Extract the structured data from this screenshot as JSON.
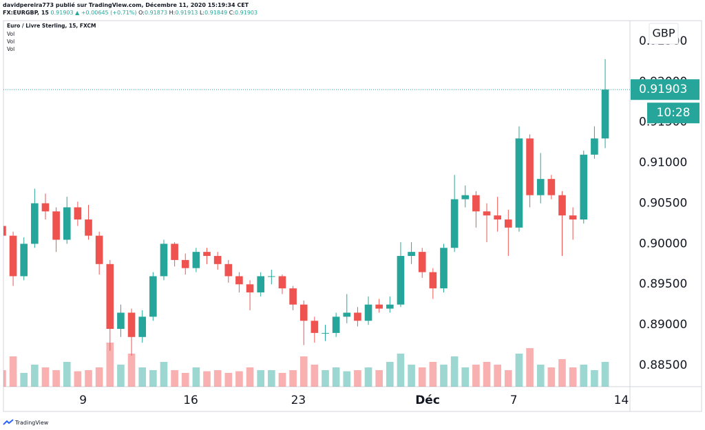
{
  "header": {
    "author_line": "davidpereira773 publié sur TradingView.com, Décembre 11, 2020 15:19:34 CET",
    "symbol": "FX:EURGBP, 15",
    "price": "0.91903",
    "change": "▲ +0.00645 (+0.71%)",
    "ohlc": [
      {
        "key": "O:",
        "value": "0.91873"
      },
      {
        "key": "H:",
        "value": "0.91913"
      },
      {
        "key": "L:",
        "value": "0.91849"
      },
      {
        "key": "C:",
        "value": "0.91903"
      }
    ]
  },
  "footer": "TradingView",
  "chart_data": {
    "type": "candlestick",
    "title": "Euro / Livre Sterling, 15, FXCM",
    "indicators": [
      "Vol",
      "Vol",
      "Vol"
    ],
    "currency": "GBP",
    "last_price": 0.91903,
    "countdown": "10:28",
    "up_color": "#26a69a",
    "down_color": "#ef5350",
    "grid": true,
    "x": [
      -3.75,
      -3.25,
      -2.75,
      -2.25,
      -1.75,
      -1.25,
      -0.75,
      -0.25,
      0.25,
      0.75,
      1.25,
      1.75,
      2.25,
      2.75,
      3.25,
      3.75,
      4.25,
      4.75,
      5.25,
      5.75,
      6.25,
      6.75,
      7.25,
      7.75,
      8.25,
      8.75,
      9.25,
      9.75,
      10.25,
      10.75,
      11.25,
      11.75,
      12.25,
      12.75,
      13.25,
      13.75,
      14.25,
      14.75,
      15.25,
      15.75,
      16.25,
      16.75,
      17.25,
      17.75,
      18.25,
      18.75,
      19.25,
      19.75,
      20.25,
      20.75,
      21.25,
      21.75,
      22.25,
      22.75,
      23.25,
      23.75,
      24.25
    ],
    "open": [
      0.9022,
      0.901,
      0.896,
      0.9,
      0.905,
      0.904,
      0.9005,
      0.9045,
      0.903,
      0.901,
      0.8975,
      0.8895,
      0.8915,
      0.8885,
      0.891,
      0.896,
      0.9,
      0.898,
      0.897,
      0.899,
      0.8985,
      0.8975,
      0.896,
      0.895,
      0.894,
      0.896,
      0.896,
      0.8945,
      0.8925,
      0.8905,
      0.889,
      0.889,
      0.891,
      0.8915,
      0.8905,
      0.8925,
      0.892,
      0.8925,
      0.8985,
      0.899,
      0.8965,
      0.8945,
      0.8995,
      0.9055,
      0.906,
      0.904,
      0.9035,
      0.903,
      0.902,
      0.913,
      0.906,
      0.908,
      0.906,
      0.9035,
      0.903,
      0.911,
      0.913
    ],
    "high": [
      0.903,
      0.9015,
      0.9008,
      0.9068,
      0.9062,
      0.9045,
      0.9058,
      0.9052,
      0.9048,
      0.9015,
      0.898,
      0.8925,
      0.892,
      0.8918,
      0.8965,
      0.9005,
      0.9002,
      0.8988,
      0.8995,
      0.8995,
      0.899,
      0.898,
      0.8965,
      0.8955,
      0.8965,
      0.8968,
      0.8962,
      0.8948,
      0.893,
      0.891,
      0.89,
      0.8915,
      0.8938,
      0.8922,
      0.8935,
      0.8932,
      0.8935,
      0.9002,
      0.9002,
      0.8995,
      0.897,
      0.9,
      0.9085,
      0.9072,
      0.9065,
      0.905,
      0.9058,
      0.9042,
      0.9145,
      0.9135,
      0.9112,
      0.9085,
      0.9065,
      0.9045,
      0.9115,
      0.9145,
      0.9228
    ],
    "low": [
      0.9005,
      0.8948,
      0.8955,
      0.8995,
      0.903,
      0.899,
      0.9,
      0.9022,
      0.9005,
      0.8962,
      0.8868,
      0.8885,
      0.8862,
      0.8878,
      0.8905,
      0.8955,
      0.8972,
      0.8962,
      0.8965,
      0.8975,
      0.8968,
      0.8952,
      0.894,
      0.8918,
      0.8935,
      0.895,
      0.8938,
      0.8918,
      0.8875,
      0.8878,
      0.888,
      0.8885,
      0.8902,
      0.8898,
      0.89,
      0.8915,
      0.8915,
      0.8922,
      0.8975,
      0.8958,
      0.8932,
      0.894,
      0.899,
      0.9045,
      0.902,
      0.9002,
      0.9015,
      0.8985,
      0.9015,
      0.9045,
      0.905,
      0.9055,
      0.8985,
      0.9005,
      0.9025,
      0.9105,
      0.9118
    ],
    "close": [
      0.901,
      0.896,
      0.9,
      0.905,
      0.904,
      0.9005,
      0.9045,
      0.903,
      0.901,
      0.8975,
      0.8895,
      0.8915,
      0.8885,
      0.891,
      0.896,
      0.9,
      0.898,
      0.897,
      0.899,
      0.8985,
      0.8975,
      0.896,
      0.895,
      0.894,
      0.896,
      0.896,
      0.8945,
      0.8925,
      0.8905,
      0.889,
      0.889,
      0.891,
      0.8915,
      0.8905,
      0.8925,
      0.892,
      0.8925,
      0.8985,
      0.899,
      0.8965,
      0.8945,
      0.8995,
      0.9055,
      0.906,
      0.904,
      0.9035,
      0.903,
      0.902,
      0.913,
      0.906,
      0.908,
      0.906,
      0.9035,
      0.903,
      0.911,
      0.913,
      0.91903
    ],
    "volume": [
      30,
      55,
      25,
      40,
      35,
      30,
      45,
      28,
      30,
      35,
      80,
      40,
      60,
      35,
      30,
      45,
      30,
      25,
      35,
      28,
      30,
      25,
      28,
      35,
      30,
      30,
      25,
      30,
      55,
      40,
      30,
      35,
      28,
      30,
      35,
      30,
      45,
      60,
      40,
      35,
      45,
      40,
      55,
      35,
      40,
      45,
      40,
      30,
      60,
      70,
      40,
      35,
      50,
      35,
      40,
      30,
      45
    ],
    "volume_lim": [
      0,
      100
    ],
    "xlim": [
      -3.7,
      25.4
    ],
    "xticks": [
      {
        "value": 0,
        "label": "9"
      },
      {
        "value": 5,
        "label": "16"
      },
      {
        "value": 10,
        "label": "23"
      },
      {
        "value": 16,
        "label": "Déc"
      },
      {
        "value": 20,
        "label": "7"
      },
      {
        "value": 25,
        "label": "14"
      }
    ],
    "ylim": [
      0.88237,
      0.92754
    ],
    "yticks": [
      {
        "value": 0.885,
        "label": "0.88500"
      },
      {
        "value": 0.89,
        "label": "0.89000"
      },
      {
        "value": 0.895,
        "label": "0.89500"
      },
      {
        "value": 0.9,
        "label": "0.90000"
      },
      {
        "value": 0.905,
        "label": "0.90500"
      },
      {
        "value": 0.91,
        "label": "0.91000"
      },
      {
        "value": 0.915,
        "label": "0.91500"
      },
      {
        "value": 0.92,
        "label": "0.92000"
      },
      {
        "value": 0.925,
        "label": "0.92500"
      }
    ]
  }
}
